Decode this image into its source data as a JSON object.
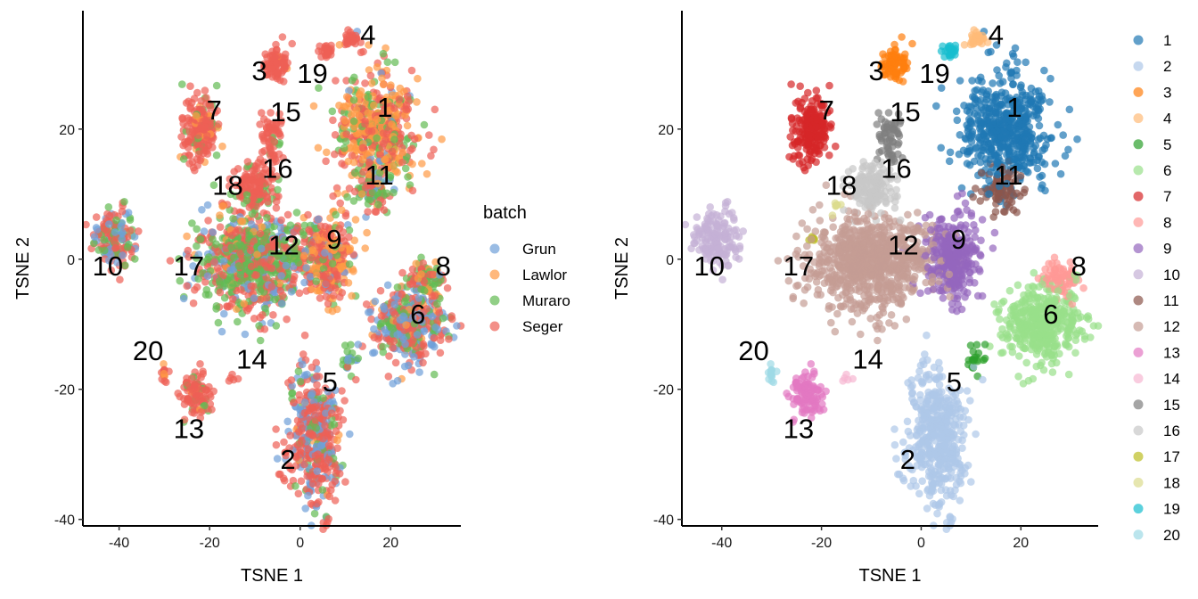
{
  "chart_data": [
    {
      "type": "scatter",
      "color_by": "batch",
      "xlabel": "TSNE 1",
      "ylabel": "TSNE 2",
      "xlim": [
        -48,
        35.5
      ],
      "ylim": [
        -41,
        38.2
      ],
      "xticks": [
        -40,
        -20,
        0,
        20
      ],
      "yticks": [
        20,
        0,
        -20,
        -40
      ],
      "grid": false,
      "legend": {
        "placement": "right",
        "title": "batch",
        "entries": [
          {
            "name": "Grun",
            "color": "#6f9fd8"
          },
          {
            "name": "Lawlor",
            "color": "#ff9a45"
          },
          {
            "name": "Muraro",
            "color": "#62bb52"
          },
          {
            "name": "Seger",
            "color": "#ee5f55"
          }
        ]
      }
    },
    {
      "type": "scatter",
      "color_by": "cluster",
      "xlabel": "TSNE 1",
      "ylabel": "TSNE 2",
      "xlim": [
        -48,
        35.5
      ],
      "ylim": [
        -41,
        38.2
      ],
      "xticks": [
        -40,
        -20,
        0,
        20
      ],
      "yticks": [
        20,
        0,
        -20,
        -40
      ],
      "grid": false,
      "legend": {
        "placement": "right",
        "title": "",
        "entries": [
          {
            "name": "1",
            "color": "#1f77b4"
          },
          {
            "name": "2",
            "color": "#aec7e8"
          },
          {
            "name": "3",
            "color": "#ff7f0e"
          },
          {
            "name": "4",
            "color": "#ffbb78"
          },
          {
            "name": "5",
            "color": "#2ca02c"
          },
          {
            "name": "6",
            "color": "#98df8a"
          },
          {
            "name": "7",
            "color": "#d62728"
          },
          {
            "name": "8",
            "color": "#ff9896"
          },
          {
            "name": "9",
            "color": "#9467bd"
          },
          {
            "name": "10",
            "color": "#c5b0d5"
          },
          {
            "name": "11",
            "color": "#8c564b"
          },
          {
            "name": "12",
            "color": "#c49c94"
          },
          {
            "name": "13",
            "color": "#e377c2"
          },
          {
            "name": "14",
            "color": "#f7b6d2"
          },
          {
            "name": "15",
            "color": "#7f7f7f"
          },
          {
            "name": "16",
            "color": "#c7c7c7"
          },
          {
            "name": "17",
            "color": "#bcbd22"
          },
          {
            "name": "18",
            "color": "#dbdb8d"
          },
          {
            "name": "19",
            "color": "#17becf"
          },
          {
            "name": "20",
            "color": "#9edae5"
          }
        ]
      }
    }
  ],
  "clusters": [
    {
      "id": "1",
      "center": [
        17,
        20
      ],
      "sd": [
        4.5,
        4.3
      ],
      "n": 500,
      "batch_mix": [
        0.05,
        0.4,
        0.2,
        0.35
      ],
      "label_at": [
        18.7,
        23.4
      ]
    },
    {
      "id": "2",
      "center": [
        3,
        -27
      ],
      "sd": [
        3,
        5.3
      ],
      "n": 450,
      "batch_mix": [
        0.3,
        0.02,
        0.08,
        0.6
      ],
      "label_at": [
        -2.7,
        -30.7
      ]
    },
    {
      "id": "3",
      "center": [
        -5,
        30
      ],
      "sd": [
        1.3,
        1.3
      ],
      "n": 80,
      "batch_mix": [
        0,
        0.05,
        0,
        0.95
      ],
      "label_at": [
        -9,
        29
      ]
    },
    {
      "id": "4",
      "center": [
        11,
        34
      ],
      "sd": [
        1,
        0.6
      ],
      "n": 25,
      "batch_mix": [
        0,
        0.1,
        0,
        0.9
      ],
      "label_at": [
        15,
        34.6
      ]
    },
    {
      "id": "5",
      "center": [
        11,
        -15.5
      ],
      "sd": [
        1,
        1
      ],
      "n": 20,
      "batch_mix": [
        0.7,
        0,
        0.3,
        0
      ],
      "label_at": [
        6.6,
        -18.8
      ]
    },
    {
      "id": "6",
      "center": [
        24,
        -10
      ],
      "sd": [
        4,
        3
      ],
      "n": 400,
      "batch_mix": [
        0.3,
        0.1,
        0.2,
        0.4
      ],
      "label_at": [
        26,
        -8.4
      ]
    },
    {
      "id": "7",
      "center": [
        -22,
        20
      ],
      "sd": [
        2,
        2.4
      ],
      "n": 200,
      "batch_mix": [
        0,
        0.1,
        0.15,
        0.75
      ],
      "label_at": [
        -19,
        23
      ]
    },
    {
      "id": "8",
      "center": [
        28,
        -3
      ],
      "sd": [
        2,
        1.5
      ],
      "n": 80,
      "batch_mix": [
        0,
        0.2,
        0.3,
        0.5
      ],
      "label_at": [
        31.6,
        -1
      ]
    },
    {
      "id": "9",
      "center": [
        6,
        0
      ],
      "sd": [
        3,
        3.2
      ],
      "n": 300,
      "batch_mix": [
        0.1,
        0.4,
        0.1,
        0.4
      ],
      "label_at": [
        7.5,
        3.1
      ]
    },
    {
      "id": "10",
      "center": [
        -41,
        3
      ],
      "sd": [
        2.2,
        2.5
      ],
      "n": 150,
      "batch_mix": [
        0.2,
        0,
        0.3,
        0.5
      ],
      "label_at": [
        -42.5,
        -1
      ]
    },
    {
      "id": "11",
      "center": [
        16,
        11
      ],
      "sd": [
        1.8,
        1.7
      ],
      "n": 80,
      "batch_mix": [
        0.2,
        0,
        0.5,
        0.3
      ],
      "label_at": [
        17.5,
        13
      ]
    },
    {
      "id": "12",
      "center": [
        -10,
        -0.5
      ],
      "sd": [
        6,
        3.5
      ],
      "n": 800,
      "batch_mix": [
        0.15,
        0.05,
        0.4,
        0.4
      ],
      "label_at": [
        -3.6,
        2.2
      ]
    },
    {
      "id": "13",
      "center": [
        -23,
        -21
      ],
      "sd": [
        1.6,
        1.5
      ],
      "n": 100,
      "batch_mix": [
        0,
        0.1,
        0.1,
        0.8
      ],
      "label_at": [
        -24.6,
        -26
      ]
    },
    {
      "id": "14",
      "center": [
        -15,
        -18.5
      ],
      "sd": [
        0.5,
        0.3
      ],
      "n": 5,
      "batch_mix": [
        0,
        0,
        0,
        1
      ],
      "label_at": [
        -10.7,
        -15.3
      ]
    },
    {
      "id": "15",
      "center": [
        -6.5,
        19
      ],
      "sd": [
        1.3,
        2
      ],
      "n": 60,
      "batch_mix": [
        0,
        0,
        0.1,
        0.9
      ],
      "label_at": [
        -3.2,
        22.7
      ]
    },
    {
      "id": "16",
      "center": [
        -10,
        11
      ],
      "sd": [
        2.5,
        2
      ],
      "n": 150,
      "batch_mix": [
        0,
        0,
        0.15,
        0.85
      ],
      "label_at": [
        -5,
        14
      ]
    },
    {
      "id": "17",
      "center": [
        -22,
        3
      ],
      "sd": [
        0.4,
        0.3
      ],
      "n": 8,
      "batch_mix": [
        0,
        0,
        0,
        1
      ],
      "label_at": [
        -24.6,
        -1
      ]
    },
    {
      "id": "18",
      "center": [
        -17,
        8
      ],
      "sd": [
        0.4,
        0.5
      ],
      "n": 8,
      "batch_mix": [
        0,
        0.5,
        0,
        0.5
      ],
      "label_at": [
        -16,
        11.4
      ]
    },
    {
      "id": "19",
      "center": [
        6,
        32
      ],
      "sd": [
        0.8,
        0.5
      ],
      "n": 25,
      "batch_mix": [
        0,
        0,
        0,
        1
      ],
      "label_at": [
        2.7,
        28.6
      ]
    },
    {
      "id": "20",
      "center": [
        -30,
        -17.5
      ],
      "sd": [
        0.4,
        0.6
      ],
      "n": 15,
      "batch_mix": [
        0,
        0.3,
        0,
        0.7
      ],
      "label_at": [
        -33.6,
        -14
      ]
    }
  ]
}
